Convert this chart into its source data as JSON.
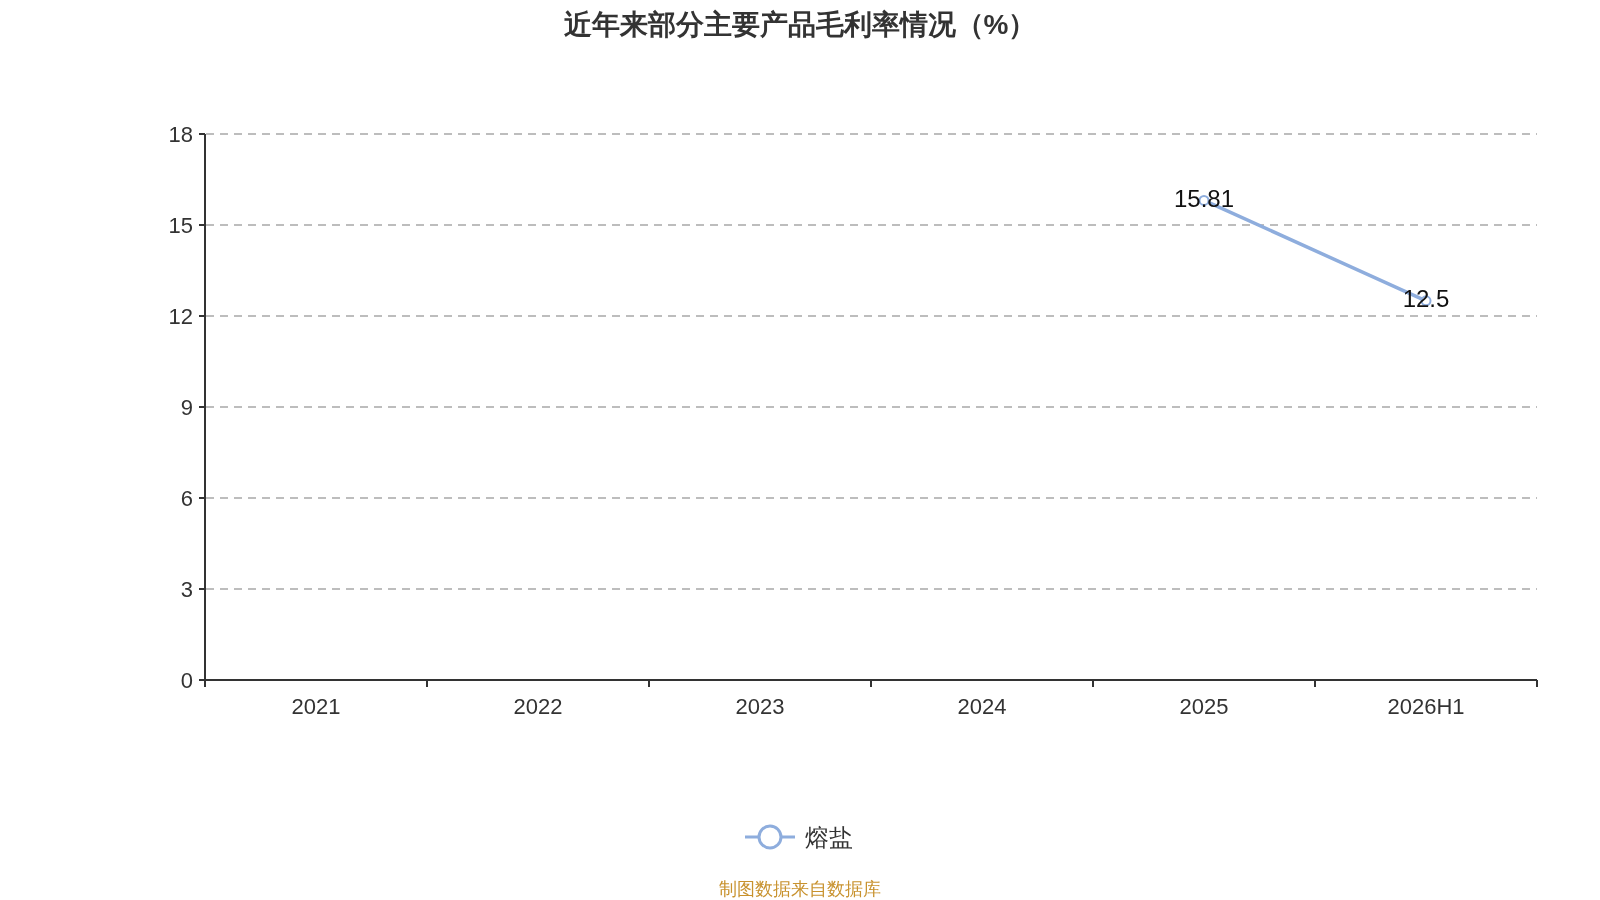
{
  "chart_data": {
    "type": "line",
    "title": "近年来部分主要产品毛利率情况（%）",
    "categories": [
      "2021",
      "2022",
      "2023",
      "2024",
      "2025",
      "2026H1"
    ],
    "series": [
      {
        "name": "熔盐",
        "color": "#8eaddd",
        "values": [
          null,
          null,
          null,
          null,
          15.81,
          12.5
        ]
      }
    ],
    "ylim": [
      0,
      18
    ],
    "yticks": [
      0,
      3,
      6,
      9,
      12,
      15,
      18
    ],
    "grid": "y",
    "legend": "bottom",
    "marker": "circle",
    "data_labels": true,
    "annotations": [
      "制图数据来自数据库"
    ]
  }
}
